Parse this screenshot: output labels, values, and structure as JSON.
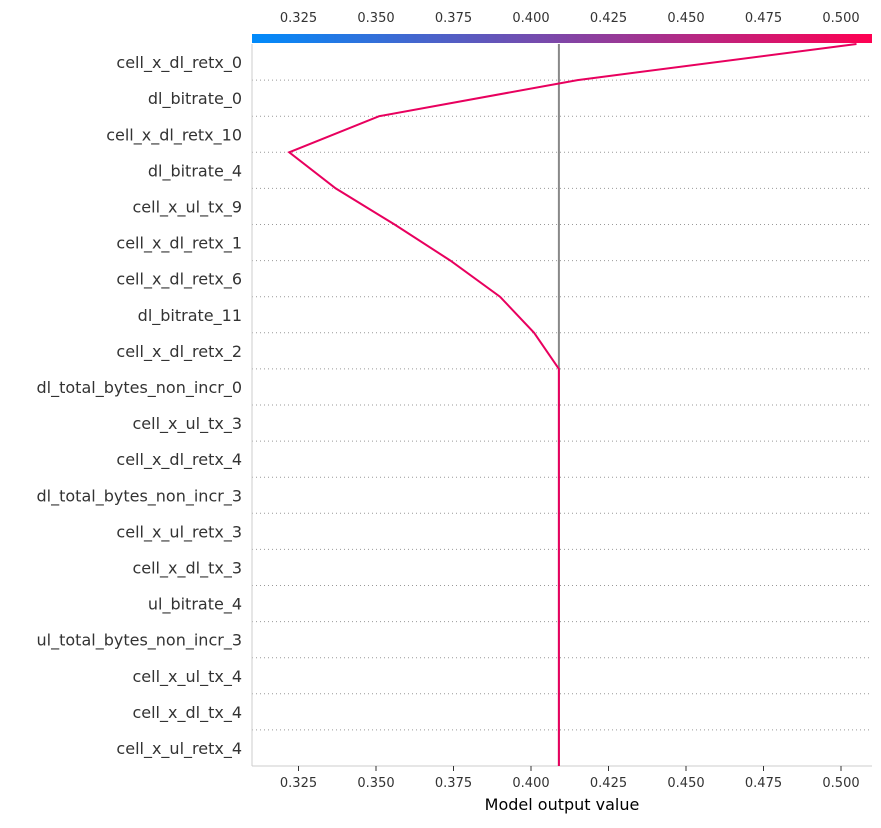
{
  "chart_data": {
    "type": "line",
    "title": "",
    "xlabel": "Model output value",
    "ylabel": "",
    "xlim": [
      0.31,
      0.51
    ],
    "xticks": [
      "0.325",
      "0.350",
      "0.375",
      "0.400",
      "0.425",
      "0.450",
      "0.475",
      "0.500"
    ],
    "base_value": 0.409,
    "colorbar": {
      "colors": [
        "#008bfb",
        "#ff0052"
      ]
    },
    "line_color": "#e8005e",
    "grid": "dotted horizontal per feature",
    "features": [
      "cell_x_dl_retx_0",
      "dl_bitrate_0",
      "cell_x_dl_retx_10",
      "dl_bitrate_4",
      "cell_x_ul_tx_9",
      "cell_x_dl_retx_1",
      "cell_x_dl_retx_6",
      "dl_bitrate_11",
      "cell_x_dl_retx_2",
      "dl_total_bytes_non_incr_0",
      "cell_x_ul_tx_3",
      "cell_x_dl_retx_4",
      "dl_total_bytes_non_incr_3",
      "cell_x_ul_retx_3",
      "cell_x_dl_tx_3",
      "ul_bitrate_4",
      "ul_total_bytes_non_incr_3",
      "cell_x_ul_tx_4",
      "cell_x_dl_tx_4",
      "cell_x_ul_retx_4"
    ],
    "path_x": [
      0.505,
      0.415,
      0.351,
      0.322,
      0.337,
      0.356,
      0.374,
      0.39,
      0.401,
      0.409,
      0.409,
      0.409,
      0.409,
      0.409,
      0.409,
      0.409,
      0.409,
      0.409,
      0.409,
      0.409,
      0.409
    ]
  }
}
